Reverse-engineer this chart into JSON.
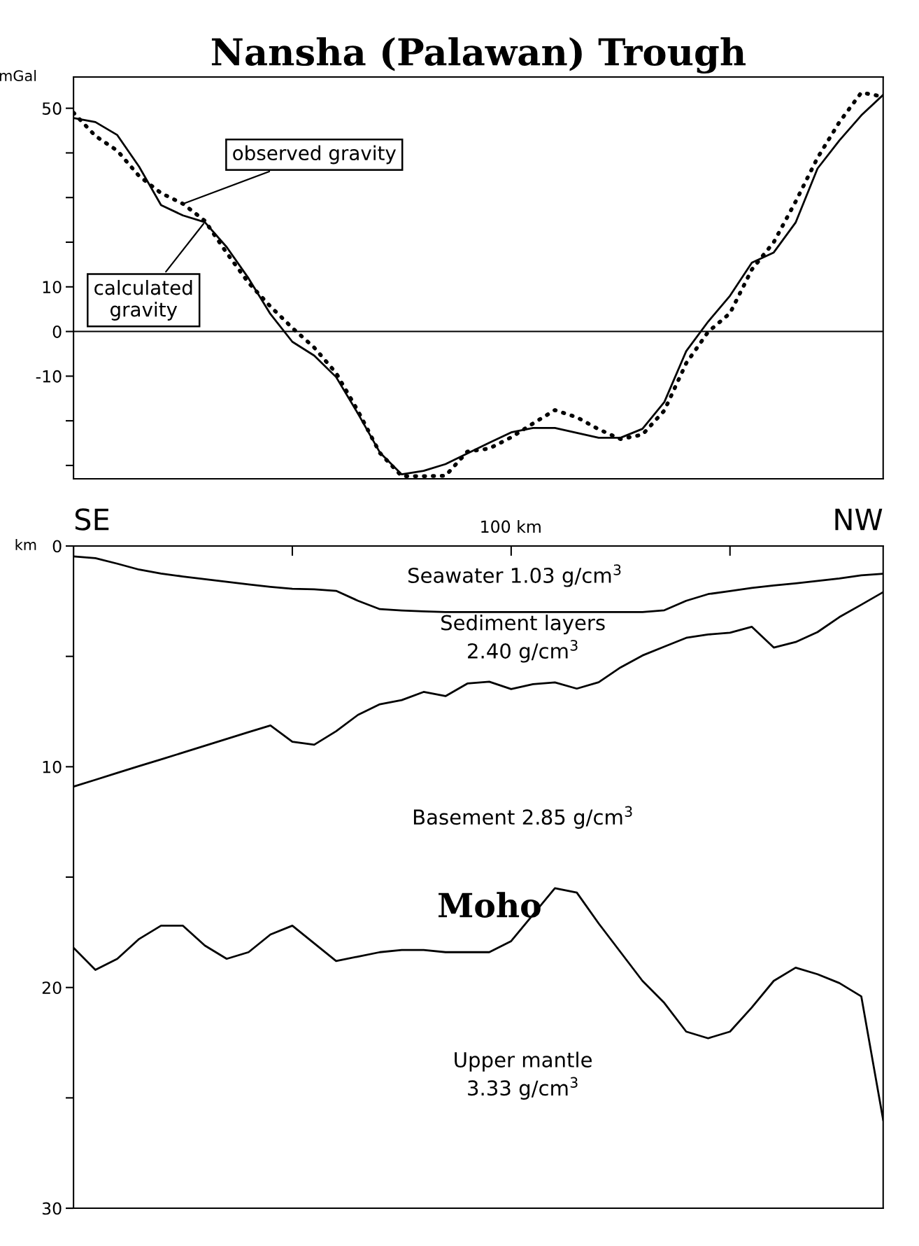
{
  "chart_data": [
    {
      "type": "line",
      "title": "Nansha (Palawan) Trough",
      "ylabel": "mGal",
      "categories": [
        null,
        null,
        null,
        null,
        null,
        null,
        null,
        null,
        null,
        null,
        null,
        null,
        null,
        null,
        null,
        null,
        null,
        null,
        null,
        null,
        null,
        null,
        null,
        null,
        null,
        null,
        null,
        null,
        null,
        null,
        null,
        null,
        null,
        null,
        null,
        null,
        null,
        null
      ],
      "ylim": [
        -33,
        57
      ],
      "yticks": [
        50,
        {
          "value": 40,
          "label": null
        },
        {
          "value": 30,
          "label": null
        },
        {
          "value": 20,
          "label": null
        },
        10,
        0,
        -10,
        {
          "value": -20,
          "label": null
        },
        {
          "value": -30,
          "label": null
        }
      ],
      "grid": false,
      "legend": false,
      "ref_lines": [
        {
          "axis": "y",
          "value": 0,
          "color": "#000000",
          "line_style": "solid"
        }
      ],
      "series": [
        {
          "name": "observed gravity",
          "color": "#000000",
          "line_style": "dotted",
          "values": [
            49,
            43.8,
            40.5,
            34.8,
            31,
            28.6,
            24.8,
            17.6,
            10.9,
            5.6,
            0.8,
            -3.6,
            -9.3,
            -17.8,
            -27.2,
            -32.4,
            -32.4,
            -32.3,
            -26.9,
            -26.2,
            -23.7,
            -20.6,
            -17.6,
            -19.2,
            -21.9,
            -24.1,
            -23.1,
            -17.7,
            -7.1,
            -0.1,
            4.1,
            13.9,
            20,
            29.1,
            38.9,
            46.9,
            53.5,
            52.6
          ]
        },
        {
          "name": "calculated\ngravity",
          "color": "#000000",
          "line_style": "solid",
          "values": [
            47.8,
            46.9,
            44,
            36.9,
            28.3,
            26,
            24.5,
            18.9,
            11.9,
            3.9,
            -2.3,
            -5.4,
            -10.2,
            -18.4,
            -27.1,
            -32,
            -31.2,
            -29.7,
            -27.3,
            -24.9,
            -22.6,
            -21.6,
            -21.6,
            -22.7,
            -23.8,
            -23.8,
            -21.8,
            -15.8,
            -4.4,
            2.2,
            8,
            15.4,
            17.7,
            24.4,
            36.5,
            42.8,
            48.4,
            53
          ]
        }
      ]
    },
    {
      "type": "line",
      "ylabel": "km",
      "categories": [
        null,
        null,
        null,
        null,
        null,
        null,
        null,
        null,
        null,
        null,
        null,
        null,
        null,
        null,
        null,
        null,
        null,
        null,
        null,
        null,
        null,
        null,
        null,
        null,
        null,
        null,
        null,
        null,
        null,
        null,
        null,
        null,
        null,
        null,
        null,
        null,
        null,
        null
      ],
      "ylim": [
        30,
        0
      ],
      "yticks": [
        0,
        {
          "value": 5,
          "label": null
        },
        10,
        {
          "value": 15,
          "label": null
        },
        20,
        {
          "value": 25,
          "label": null
        },
        30
      ],
      "grid": false,
      "legend": false,
      "annotations": [
        "SE",
        "NW",
        "100 km",
        "Seawater 1.03 g/cm$^{3}$",
        "Sediment layers\n2.40 g/cm$^{3}$",
        "Basement 2.85 g/cm$^{3}$",
        "Upper mantle\n3.33 g/cm$^{3}$"
      ],
      "series": [
        {
          "color": "#000000",
          "line_style": "solid",
          "values": [
            0.47,
            0.55,
            0.8,
            1.07,
            1.25,
            1.38,
            1.5,
            1.62,
            1.74,
            1.85,
            1.94,
            1.96,
            2.03,
            2.48,
            2.86,
            2.92,
            2.96,
            2.99,
            2.99,
            2.99,
            2.99,
            2.99,
            2.99,
            2.99,
            2.99,
            2.99,
            2.99,
            2.91,
            2.48,
            2.18,
            2.04,
            1.9,
            1.79,
            1.69,
            1.58,
            1.47,
            1.33,
            1.26
          ]
        },
        {
          "color": "#000000",
          "line_style": "solid",
          "values": [
            10.9,
            10.59,
            10.28,
            9.97,
            9.67,
            9.36,
            9.05,
            8.74,
            8.43,
            8.13,
            8.87,
            9,
            8.39,
            7.65,
            7.17,
            6.98,
            6.61,
            6.8,
            6.23,
            6.15,
            6.48,
            6.26,
            6.18,
            6.46,
            6.17,
            5.5,
            4.96,
            4.56,
            4.16,
            4.01,
            3.93,
            3.66,
            4.6,
            4.35,
            3.9,
            3.22,
            2.66,
            2.09
          ]
        },
        {
          "name": "Moho",
          "color": "#000000",
          "line_style": "solid",
          "values": [
            18.2,
            19.2,
            18.7,
            17.8,
            17.2,
            17.2,
            18.1,
            18.7,
            18.4,
            17.6,
            17.2,
            18,
            18.8,
            18.6,
            18.4,
            18.3,
            18.3,
            18.4,
            18.4,
            18.4,
            17.9,
            16.7,
            15.5,
            15.7,
            17.1,
            18.4,
            19.7,
            20.7,
            22,
            22.3,
            22,
            20.9,
            19.7,
            19.1,
            19.4,
            19.8,
            20.4,
            26
          ]
        }
      ]
    }
  ]
}
